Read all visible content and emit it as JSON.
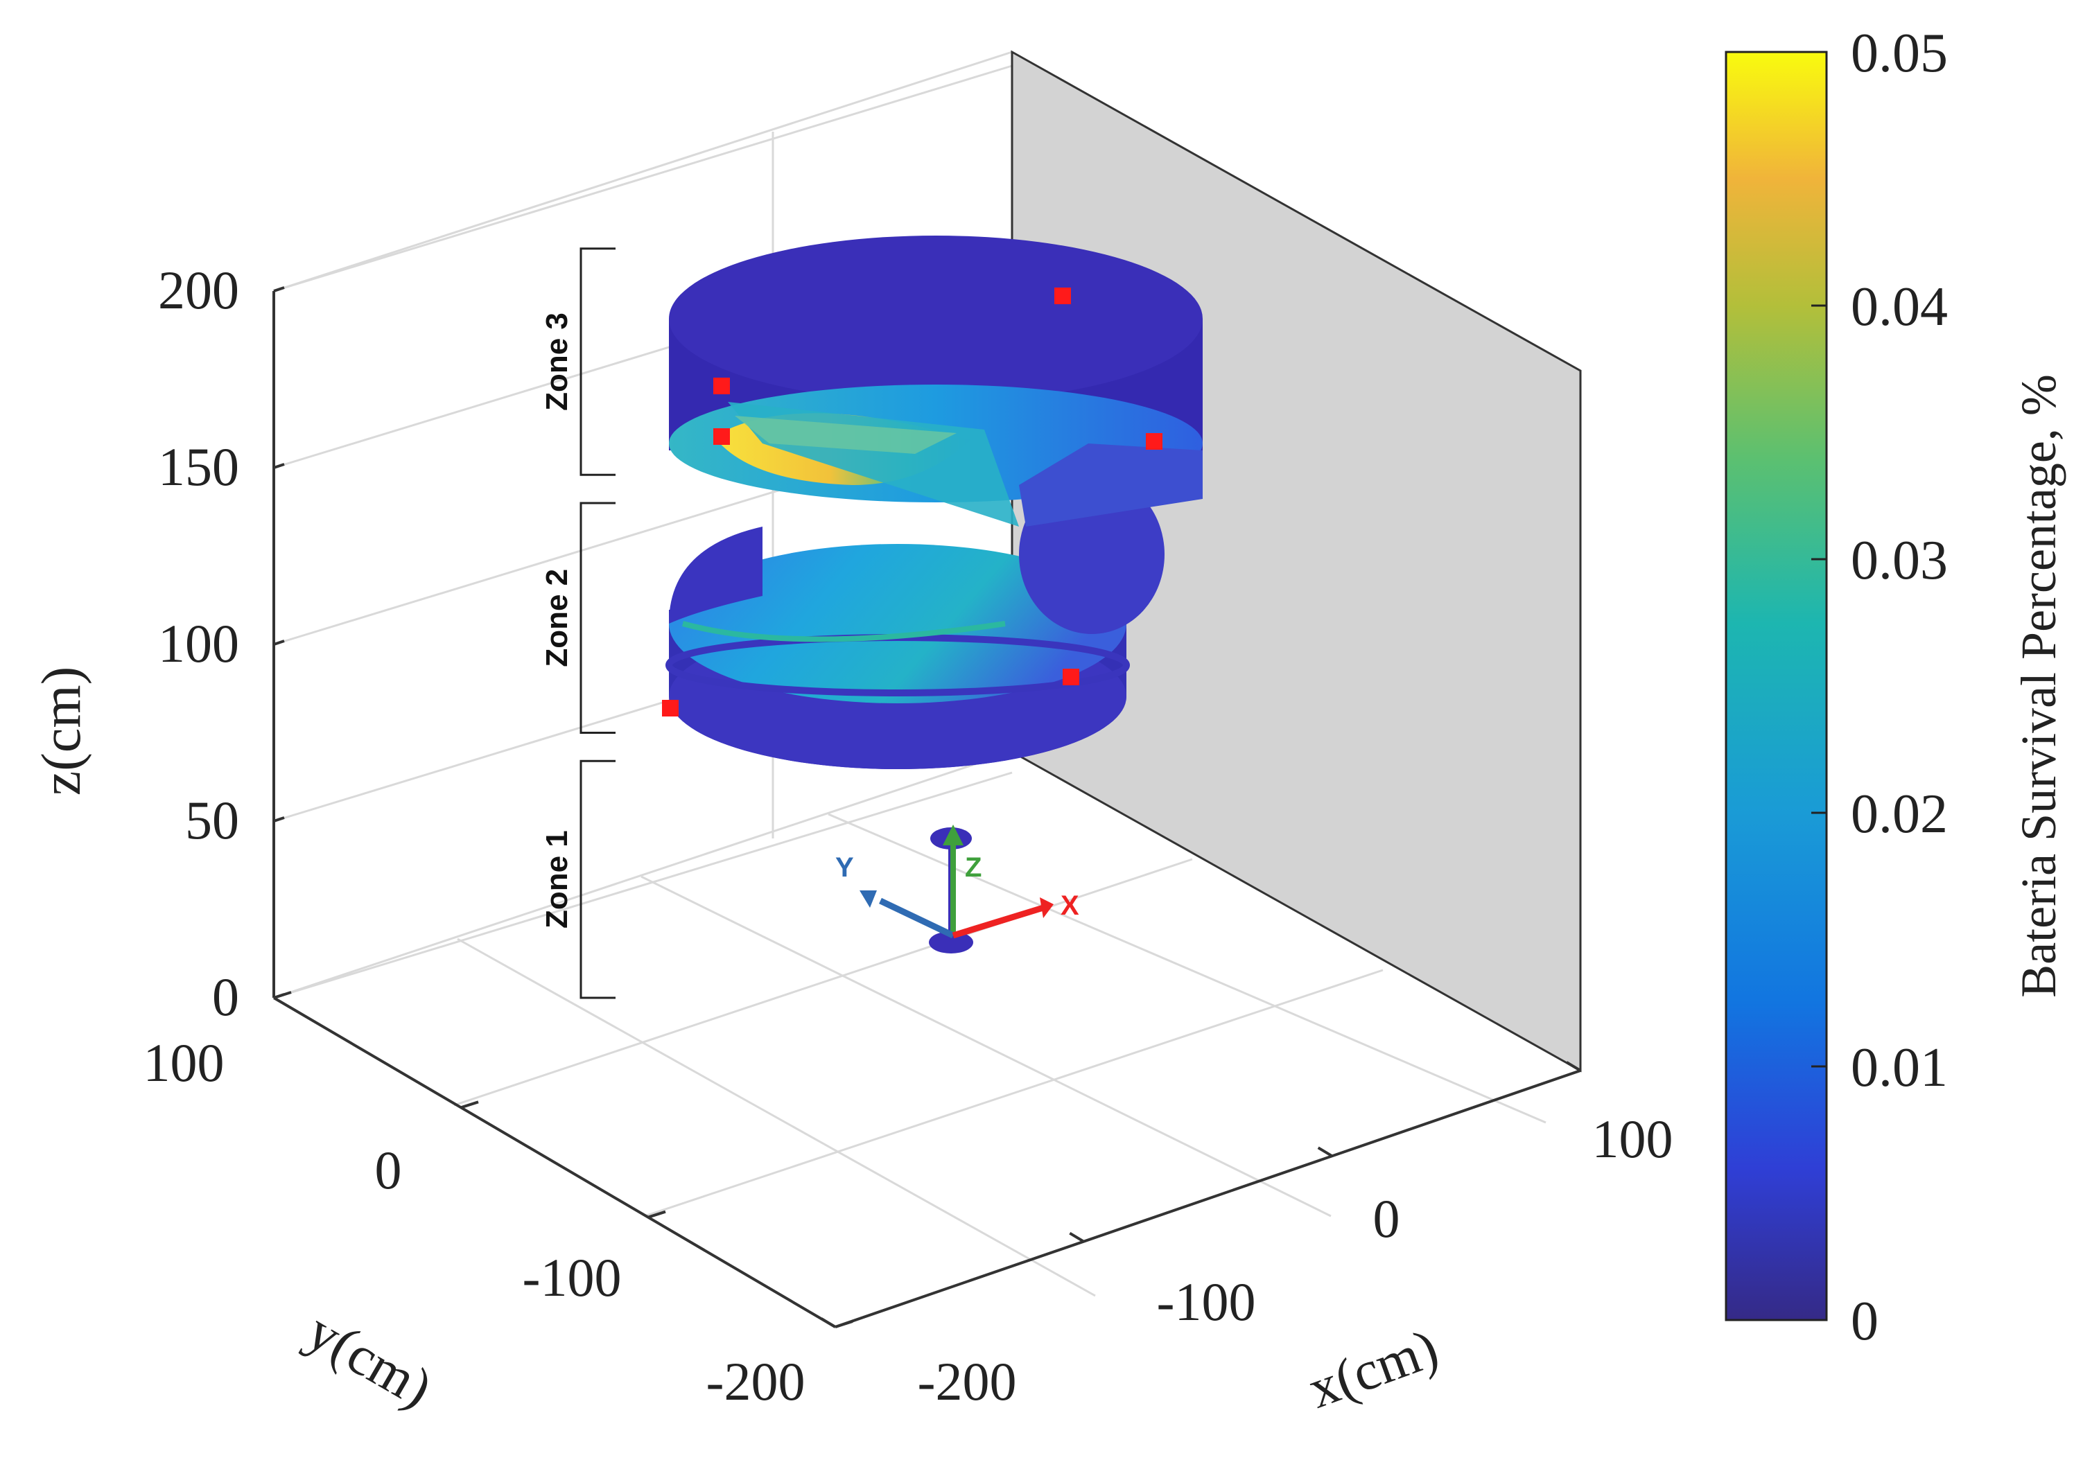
{
  "chart_data": {
    "type": "scatter3d",
    "title": "",
    "axes": {
      "x": {
        "label": "x(cm)",
        "ticks": [
          -200,
          -100,
          0,
          100
        ],
        "range": [
          -200,
          100
        ]
      },
      "y": {
        "label": "y(cm)",
        "ticks": [
          -200,
          -100,
          0,
          100
        ],
        "range": [
          -200,
          100
        ]
      },
      "z": {
        "label": "z(cm)",
        "ticks": [
          0,
          50,
          100,
          150,
          200
        ],
        "range": [
          0,
          200
        ]
      }
    },
    "grid": true,
    "zones": [
      {
        "name": "Zone 1",
        "z_range": [
          0,
          67
        ]
      },
      {
        "name": "Zone 2",
        "z_range": [
          75,
          140
        ]
      },
      {
        "name": "Zone 3",
        "z_range": [
          148,
          212
        ]
      }
    ],
    "coordinate_axes_labels": [
      "X",
      "Y",
      "Z"
    ],
    "colorbar": {
      "label": "Bateria Survival Percentage, %",
      "ticks": [
        "0",
        "0.01",
        "0.02",
        "0.03",
        "0.04",
        "0.05"
      ],
      "range": [
        0,
        0.05
      ],
      "colormap": "parula"
    },
    "colors": {
      "disc_base": "#3a2fb8",
      "disc_mid": "#2f6fe0",
      "high": "#f4d93a",
      "marker": "#ff1a1a",
      "wall": "#d3d3d3"
    }
  }
}
